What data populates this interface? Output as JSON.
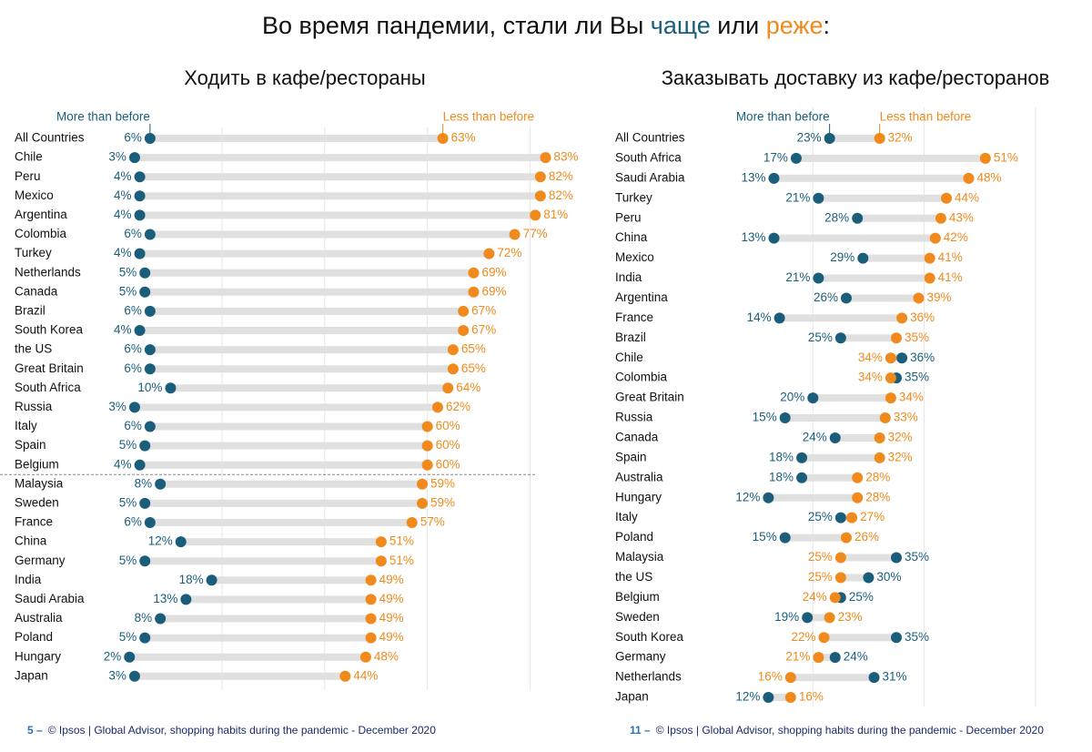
{
  "header": {
    "title_parts": [
      "Во время пандемии, стали ли Вы ",
      "чаще",
      " или ",
      "реже",
      ":"
    ]
  },
  "footer": [
    {
      "page": "5 –",
      "text": "© Ipsos |  Global Advisor, shopping habits during the pandemic - December 2020"
    },
    {
      "page": "11 –",
      "text": "© Ipsos |  Global Advisor, shopping habits during the pandemic - December 2020"
    }
  ],
  "chart_data": [
    {
      "type": "dumbbell",
      "subtitle": "Ходить в кафе/рестораны",
      "categories": [
        "All Countries",
        "Chile",
        "Peru",
        "Mexico",
        "Argentina",
        "Colombia",
        "Turkey",
        "Netherlands",
        "Canada",
        "Brazil",
        "South Korea",
        "the US",
        "Great Britain",
        "South Africa",
        "Russia",
        "Italy",
        "Spain",
        "Belgium",
        "Malaysia",
        "Sweden",
        "France",
        "China",
        "Germany",
        "India",
        "Saudi Arabia",
        "Australia",
        "Poland",
        "Hungary",
        "Japan"
      ],
      "series": [
        {
          "name": "More than before",
          "color": "#1b5e7b",
          "values": [
            6,
            3,
            4,
            4,
            4,
            6,
            4,
            5,
            5,
            6,
            4,
            6,
            6,
            10,
            3,
            6,
            5,
            4,
            8,
            5,
            6,
            12,
            5,
            18,
            13,
            8,
            5,
            2,
            3
          ],
          "value_labels": [
            "6%",
            "3%",
            "4%",
            "4%",
            "4%",
            "6%",
            "4%",
            "5%",
            "5%",
            "6%",
            "4%",
            "6%",
            "6%",
            "10%",
            "3%",
            "6%",
            "5%",
            "4%",
            "8%",
            "5%",
            "6%",
            "12%",
            "5%",
            "18%",
            "13%",
            "8%",
            "5%",
            "2%",
            "3%"
          ]
        },
        {
          "name": "Less than before",
          "color": "#f08a1c",
          "values": [
            63,
            83,
            82,
            82,
            81,
            77,
            72,
            69,
            69,
            67,
            67,
            65,
            65,
            64,
            62,
            60,
            60,
            60,
            59,
            59,
            57,
            51,
            51,
            49,
            49,
            49,
            49,
            48,
            44
          ],
          "value_labels": [
            "63%",
            "83%",
            "82%",
            "82%",
            "81%",
            "77%",
            "72%",
            "69%",
            "69%",
            "67%",
            "67%",
            "65%",
            "65%",
            "64%",
            "62%",
            "60%",
            "60%",
            "60%",
            "59%",
            "59%",
            "57%",
            "51%",
            "51%",
            "49%",
            "49%",
            "49%",
            "49%",
            "48%",
            "44%"
          ]
        }
      ],
      "xlim": [
        0,
        90
      ],
      "xticks": [
        20,
        40,
        60,
        80
      ],
      "grid": true
    },
    {
      "type": "dumbbell",
      "subtitle": "Заказывать доставку из кафе/ресторанов",
      "categories": [
        "All Countries",
        "South Africa",
        "Saudi Arabia",
        "Turkey",
        "Peru",
        "China",
        "Mexico",
        "India",
        "Argentina",
        "France",
        "Brazil",
        "Chile",
        "Colombia",
        "Great Britain",
        "Russia",
        "Canada",
        "Spain",
        "Australia",
        "Hungary",
        "Italy",
        "Poland",
        "Malaysia",
        "the US",
        "Belgium",
        "Sweden",
        "South Korea",
        "Germany",
        "Netherlands",
        "Japan"
      ],
      "series": [
        {
          "name": "More than before",
          "color": "#1b5e7b",
          "values": [
            23,
            17,
            13,
            21,
            28,
            13,
            29,
            21,
            26,
            14,
            25,
            36,
            35,
            20,
            15,
            24,
            18,
            18,
            12,
            25,
            15,
            35,
            30,
            25,
            19,
            35,
            24,
            31,
            12
          ],
          "value_labels": [
            "23%",
            "17%",
            "13%",
            "21%",
            "28%",
            "13%",
            "29%",
            "21%",
            "26%",
            "14%",
            "25%",
            "36%",
            "35%",
            "20%",
            "15%",
            "24%",
            "18%",
            "18%",
            "12%",
            "25%",
            "15%",
            "35%",
            "30%",
            "25%",
            "19%",
            "35%",
            "24%",
            "31%",
            "12%"
          ]
        },
        {
          "name": "Less than before",
          "color": "#f08a1c",
          "values": [
            32,
            51,
            48,
            44,
            43,
            42,
            41,
            41,
            39,
            36,
            35,
            34,
            34,
            34,
            33,
            32,
            32,
            28,
            28,
            27,
            26,
            25,
            25,
            24,
            23,
            22,
            21,
            16,
            16
          ],
          "value_labels": [
            "32%",
            "51%",
            "48%",
            "44%",
            "43%",
            "42%",
            "41%",
            "41%",
            "39%",
            "36%",
            "35%",
            "34%",
            "34%",
            "34%",
            "33%",
            "32%",
            "32%",
            "28%",
            "28%",
            "27%",
            "26%",
            "25%",
            "25%",
            "24%",
            "23%",
            "22%",
            "21%",
            "16%",
            "16%"
          ]
        }
      ],
      "xlim": [
        0,
        70
      ],
      "xticks": [
        20,
        40,
        60
      ],
      "grid": true
    }
  ]
}
